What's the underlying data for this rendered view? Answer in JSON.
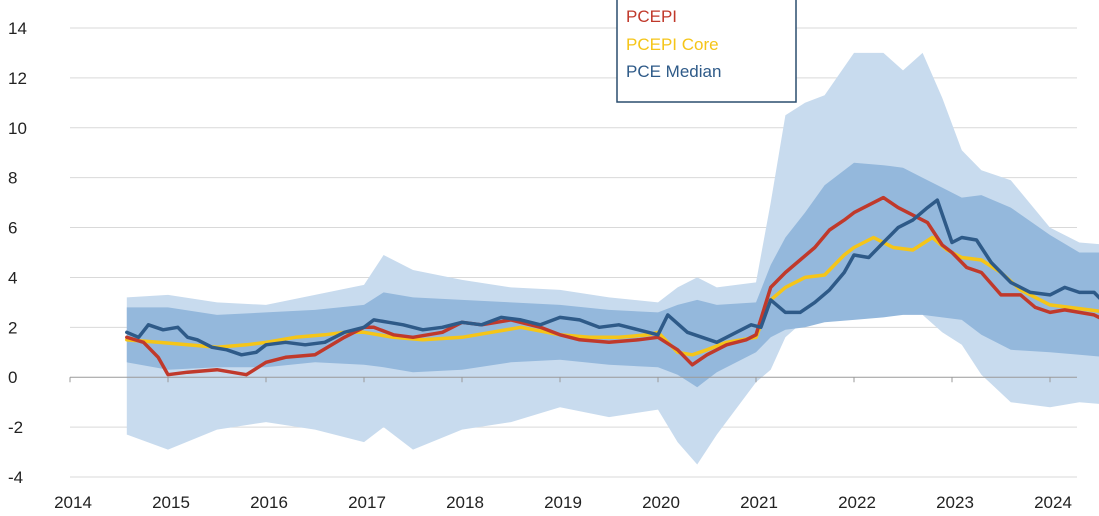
{
  "chart_data": {
    "type": "line",
    "title": "",
    "xlabel": "",
    "ylabel": "",
    "xlim": [
      2014.0,
      2024.6
    ],
    "ylim": [
      -4,
      14
    ],
    "y_ticks": [
      -4,
      -2,
      0,
      2,
      4,
      6,
      8,
      10,
      12,
      14
    ],
    "x_ticks": [
      "2014",
      "2015",
      "2016",
      "2017",
      "2018",
      "2019",
      "2020",
      "2021",
      "2022",
      "2023",
      "2024"
    ],
    "x_tick_values": [
      2014.0,
      2015.0,
      2016.0,
      2017.0,
      2018.0,
      2019.0,
      2020.0,
      2021.0,
      2022.0,
      2023.0,
      2024.0
    ],
    "grid": "horizontal",
    "legend_position": "top-center",
    "colors": {
      "pcepi": "#c0392b",
      "pcepi_core": "#f5c518",
      "pce_median": "#2e5a88",
      "band_outer": "#c8dbee",
      "band_inner": "#94b8dc"
    },
    "bands": [
      {
        "key": "outer",
        "x": [
          2014.58,
          2015.0,
          2015.5,
          2016.0,
          2016.5,
          2017.0,
          2017.2,
          2017.5,
          2018.0,
          2018.5,
          2019.0,
          2019.5,
          2020.0,
          2020.2,
          2020.4,
          2020.6,
          2021.0,
          2021.15,
          2021.3,
          2021.5,
          2021.7,
          2022.0,
          2022.3,
          2022.5,
          2022.7,
          2022.9,
          2023.1,
          2023.3,
          2023.6,
          2024.0,
          2024.3,
          2024.6
        ],
        "upper": [
          3.2,
          3.3,
          3.0,
          2.9,
          3.3,
          3.7,
          4.9,
          4.3,
          3.9,
          3.6,
          3.5,
          3.2,
          3.0,
          3.6,
          4.0,
          3.6,
          3.8,
          7.0,
          10.5,
          11.0,
          11.3,
          13.0,
          13.0,
          12.3,
          13.0,
          11.2,
          9.1,
          8.3,
          7.9,
          6.0,
          5.4,
          5.3
        ],
        "lower": [
          -2.3,
          -2.9,
          -2.1,
          -1.8,
          -2.1,
          -2.6,
          -2.0,
          -2.9,
          -2.1,
          -1.8,
          -1.2,
          -1.6,
          -1.3,
          -2.6,
          -3.5,
          -2.3,
          -0.2,
          0.3,
          1.6,
          2.3,
          3.0,
          3.4,
          3.3,
          3.1,
          2.5,
          1.8,
          1.3,
          0.1,
          -1.0,
          -1.2,
          -1.0,
          -1.1
        ]
      },
      {
        "key": "inner",
        "x": [
          2014.58,
          2015.0,
          2015.5,
          2016.0,
          2016.5,
          2017.0,
          2017.2,
          2017.5,
          2018.0,
          2018.5,
          2019.0,
          2019.5,
          2020.0,
          2020.2,
          2020.4,
          2020.6,
          2021.0,
          2021.15,
          2021.3,
          2021.5,
          2021.7,
          2022.0,
          2022.3,
          2022.5,
          2022.7,
          2022.9,
          2023.1,
          2023.3,
          2023.6,
          2024.0,
          2024.3,
          2024.6
        ],
        "upper": [
          2.8,
          2.8,
          2.5,
          2.6,
          2.7,
          2.9,
          3.4,
          3.2,
          3.1,
          3.0,
          2.9,
          2.7,
          2.6,
          2.9,
          3.1,
          2.9,
          3.0,
          4.5,
          5.6,
          6.6,
          7.7,
          8.6,
          8.5,
          8.4,
          8.0,
          7.6,
          7.2,
          7.3,
          6.8,
          5.7,
          5.0,
          5.0
        ],
        "lower": [
          0.6,
          0.3,
          0.4,
          0.4,
          0.6,
          0.5,
          0.4,
          0.2,
          0.3,
          0.6,
          0.7,
          0.5,
          0.4,
          0.1,
          -0.4,
          0.2,
          1.0,
          1.6,
          1.9,
          2.0,
          2.2,
          2.3,
          2.4,
          2.5,
          2.5,
          2.4,
          2.3,
          1.7,
          1.1,
          1.0,
          0.9,
          0.8
        ]
      }
    ],
    "series": [
      {
        "name": "PCEPI",
        "key": "pcepi",
        "x": [
          2014.58,
          2014.75,
          2014.9,
          2015.0,
          2015.2,
          2015.5,
          2015.8,
          2016.0,
          2016.2,
          2016.5,
          2016.8,
          2017.0,
          2017.1,
          2017.3,
          2017.5,
          2017.8,
          2018.0,
          2018.2,
          2018.5,
          2018.8,
          2019.0,
          2019.2,
          2019.5,
          2019.8,
          2020.0,
          2020.2,
          2020.35,
          2020.5,
          2020.7,
          2020.9,
          2021.0,
          2021.15,
          2021.3,
          2021.45,
          2021.6,
          2021.75,
          2021.9,
          2022.0,
          2022.15,
          2022.3,
          2022.45,
          2022.6,
          2022.75,
          2022.9,
          2023.0,
          2023.15,
          2023.3,
          2023.5,
          2023.7,
          2023.85,
          2024.0,
          2024.15,
          2024.3,
          2024.45,
          2024.6
        ],
        "y": [
          1.6,
          1.4,
          0.8,
          0.1,
          0.2,
          0.3,
          0.1,
          0.6,
          0.8,
          0.9,
          1.6,
          2.0,
          2.0,
          1.7,
          1.6,
          1.8,
          2.2,
          2.1,
          2.3,
          2.0,
          1.7,
          1.5,
          1.4,
          1.5,
          1.6,
          1.1,
          0.5,
          0.9,
          1.3,
          1.5,
          1.7,
          3.6,
          4.2,
          4.7,
          5.2,
          5.9,
          6.3,
          6.6,
          6.9,
          7.2,
          6.8,
          6.5,
          6.2,
          5.3,
          5.0,
          4.4,
          4.2,
          3.3,
          3.3,
          2.8,
          2.6,
          2.7,
          2.6,
          2.5,
          2.2
        ]
      },
      {
        "name": "PCEPI Core",
        "key": "pcepi_core",
        "x": [
          2014.58,
          2014.9,
          2015.2,
          2015.5,
          2015.8,
          2016.0,
          2016.3,
          2016.6,
          2016.8,
          2017.0,
          2017.3,
          2017.6,
          2018.0,
          2018.3,
          2018.6,
          2019.0,
          2019.3,
          2019.6,
          2019.9,
          2020.0,
          2020.2,
          2020.35,
          2020.5,
          2020.7,
          2021.0,
          2021.15,
          2021.3,
          2021.5,
          2021.7,
          2021.9,
          2022.0,
          2022.2,
          2022.4,
          2022.6,
          2022.8,
          2022.95,
          2023.1,
          2023.3,
          2023.5,
          2023.7,
          2024.0,
          2024.2,
          2024.4,
          2024.6
        ],
        "y": [
          1.5,
          1.4,
          1.3,
          1.2,
          1.3,
          1.4,
          1.6,
          1.7,
          1.8,
          1.8,
          1.6,
          1.5,
          1.6,
          1.8,
          2.0,
          1.7,
          1.6,
          1.6,
          1.7,
          1.8,
          1.0,
          0.9,
          1.1,
          1.4,
          1.6,
          3.1,
          3.6,
          4.0,
          4.1,
          4.9,
          5.2,
          5.6,
          5.2,
          5.1,
          5.6,
          5.1,
          4.8,
          4.7,
          4.2,
          3.5,
          2.9,
          2.8,
          2.7,
          2.6
        ]
      },
      {
        "name": "PCE Median",
        "key": "pce_median",
        "x": [
          2014.58,
          2014.7,
          2014.8,
          2014.95,
          2015.1,
          2015.2,
          2015.3,
          2015.45,
          2015.6,
          2015.75,
          2015.9,
          2016.0,
          2016.2,
          2016.4,
          2016.6,
          2016.8,
          2017.0,
          2017.1,
          2017.25,
          2017.4,
          2017.6,
          2017.8,
          2018.0,
          2018.2,
          2018.4,
          2018.6,
          2018.8,
          2019.0,
          2019.2,
          2019.4,
          2019.6,
          2019.8,
          2020.0,
          2020.1,
          2020.3,
          2020.45,
          2020.6,
          2020.8,
          2020.95,
          2021.05,
          2021.15,
          2021.3,
          2021.45,
          2021.6,
          2021.75,
          2021.9,
          2022.0,
          2022.15,
          2022.3,
          2022.45,
          2022.6,
          2022.75,
          2022.85,
          2023.0,
          2023.1,
          2023.25,
          2023.4,
          2023.6,
          2023.8,
          2024.0,
          2024.15,
          2024.3,
          2024.45,
          2024.6
        ],
        "y": [
          1.8,
          1.6,
          2.1,
          1.9,
          2.0,
          1.6,
          1.5,
          1.2,
          1.1,
          0.9,
          1.0,
          1.3,
          1.4,
          1.3,
          1.4,
          1.8,
          2.0,
          2.3,
          2.2,
          2.1,
          1.9,
          2.0,
          2.2,
          2.1,
          2.4,
          2.3,
          2.1,
          2.4,
          2.3,
          2.0,
          2.1,
          1.9,
          1.7,
          2.5,
          1.8,
          1.6,
          1.4,
          1.8,
          2.1,
          2.0,
          3.1,
          2.6,
          2.6,
          3.0,
          3.5,
          4.2,
          4.9,
          4.8,
          5.4,
          6.0,
          6.3,
          6.8,
          7.1,
          5.4,
          5.6,
          5.5,
          4.6,
          3.8,
          3.4,
          3.3,
          3.6,
          3.4,
          3.4,
          2.8
        ]
      }
    ],
    "legend": [
      {
        "label": "PCEPI",
        "key": "pcepi"
      },
      {
        "label": "PCEPI Core",
        "key": "pcepi_core"
      },
      {
        "label": "PCE Median",
        "key": "pce_median"
      }
    ]
  }
}
